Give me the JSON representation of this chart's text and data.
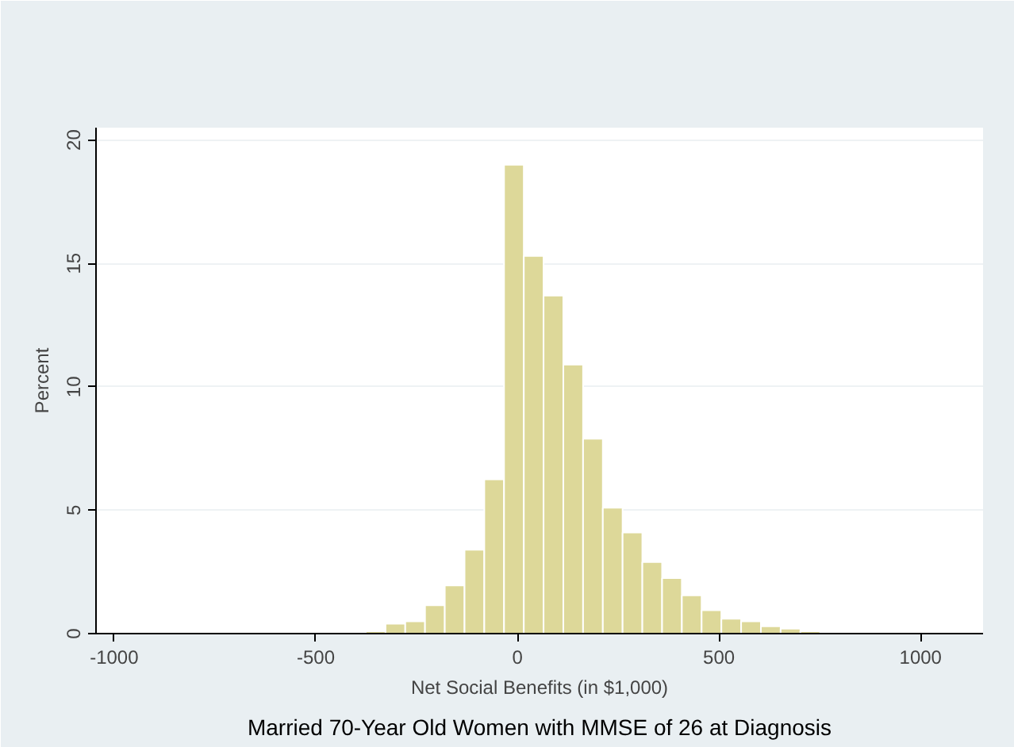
{
  "chart_data": {
    "type": "histogram",
    "xlabel": "Net Social Benefits (in $1,000)",
    "ylabel": "Percent",
    "annotations": [
      "Married 70-Year Old Women with MMSE of 26 at Diagnosis"
    ],
    "bins": [
      -376,
      -327,
      -278,
      -229,
      -180,
      -131,
      -82,
      -33,
      16,
      65,
      114,
      163,
      212,
      261,
      310,
      359,
      408,
      457,
      506,
      555,
      604,
      653,
      702,
      751
    ],
    "values": [
      0.1,
      0.4,
      0.5,
      1.15,
      1.95,
      3.4,
      6.25,
      19,
      15.3,
      13.7,
      10.9,
      7.9,
      5.1,
      4.1,
      2.9,
      2.25,
      1.55,
      0.95,
      0.6,
      0.5,
      0.3,
      0.2,
      0.1
    ],
    "color": "#ddd899",
    "xlim": [
      -1045,
      1155
    ],
    "ylim": [
      0,
      20.5
    ],
    "xticks": [
      -1000,
      -500,
      0,
      500,
      1000
    ],
    "yticks": [
      0,
      5,
      10,
      15,
      20
    ],
    "grid": "y"
  }
}
